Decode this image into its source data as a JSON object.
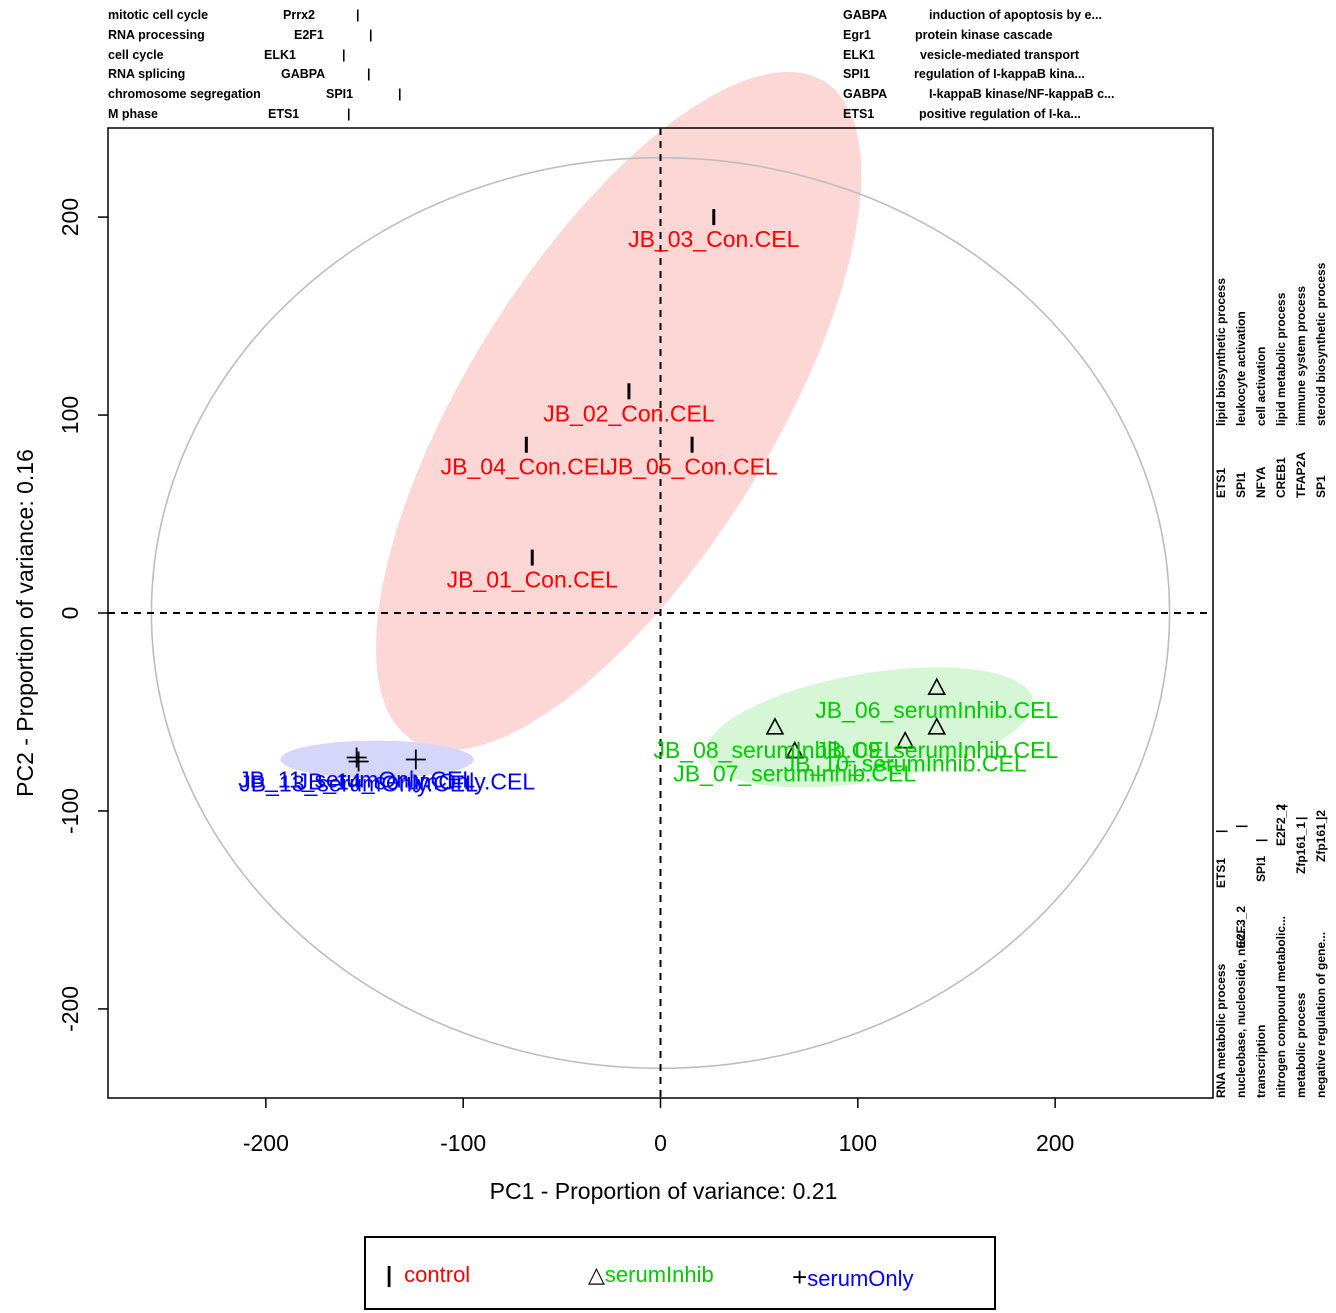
{
  "chart_data": {
    "type": "scatter",
    "title": "",
    "xlabel": "PC1  -  Proportion of variance: 0.21",
    "ylabel": "PC2  -  Proportion of variance: 0.16",
    "xlim": [
      -280,
      280
    ],
    "ylim": [
      -245,
      245
    ],
    "xticks": [
      "-200",
      "-100",
      "0",
      "100",
      "200"
    ],
    "yticks": [
      "-200",
      "-100",
      "0",
      "100",
      "200"
    ],
    "grid": false,
    "legend_position": "bottom",
    "series": [
      {
        "name": "control",
        "marker": "bar",
        "color": "#ff0000",
        "ellipse_color": "#fdd6d6",
        "points": [
          {
            "x": 27,
            "y": 200,
            "label": "JB_03_Con.CEL"
          },
          {
            "x": -16,
            "y": 112,
            "label": "JB_02_Con.CEL"
          },
          {
            "x": -68,
            "y": 85,
            "label": "JB_04_Con.CEL"
          },
          {
            "x": 16,
            "y": 85,
            "label": "JB_05_Con.CEL"
          },
          {
            "x": -65,
            "y": 28,
            "label": "JB_01_Con.CEL"
          }
        ]
      },
      {
        "name": "serumInhib",
        "marker": "triangle",
        "color": "#00cc00",
        "ellipse_color": "#d6f7d6",
        "points": [
          {
            "x": 140,
            "y": -38,
            "label": "JB_06_serumInhib.CEL"
          },
          {
            "x": 58,
            "y": -58,
            "label": "JB_08_serumInhib.CEL"
          },
          {
            "x": 140,
            "y": -58,
            "label": "JB_09_serumInhib.CEL"
          },
          {
            "x": 124,
            "y": -65,
            "label": "JB_10_serumInhib.CEL"
          },
          {
            "x": 68,
            "y": -70,
            "label": "JB_07_serumInhib.CEL"
          }
        ]
      },
      {
        "name": "serumOnly",
        "marker": "plus",
        "color": "#0000ff",
        "ellipse_color": "#d6d6fb",
        "points": [
          {
            "x": -154,
            "y": -73,
            "label": "JB_11_serumOnly.CEL"
          },
          {
            "x": -153,
            "y": -75,
            "label": "JB_13_serumOnly.CEL"
          },
          {
            "x": -124,
            "y": -74,
            "label": "JB_14_serumOnly.CEL"
          }
        ]
      }
    ],
    "annotations": {
      "top_left": [
        {
          "term": "mitotic cell cycle",
          "gene": "Prrx2"
        },
        {
          "term": "RNA processing",
          "gene": "E2F1"
        },
        {
          "term": "cell cycle",
          "gene": "ELK1"
        },
        {
          "term": "RNA splicing",
          "gene": "GABPA"
        },
        {
          "term": "chromosome segregation",
          "gene": "SPI1"
        },
        {
          "term": "M phase",
          "gene": "ETS1"
        }
      ],
      "top_right": [
        {
          "gene": "GABPA",
          "term": "induction of apoptosis by e..."
        },
        {
          "gene": "Egr1",
          "term": "protein kinase cascade"
        },
        {
          "gene": "ELK1",
          "term": "vesicle-mediated transport"
        },
        {
          "gene": "SPI1",
          "term": "regulation of I-kappaB kina..."
        },
        {
          "gene": "GABPA",
          "term": "I-kappaB kinase/NF-kappaB c..."
        },
        {
          "gene": "ETS1",
          "term": "positive regulation of I-ka..."
        }
      ],
      "right_upper": [
        {
          "gene": "ETS1",
          "term": "lipid biosynthetic process"
        },
        {
          "gene": "SPI1",
          "term": "leukocyte activation"
        },
        {
          "gene": "NFYA",
          "term": "cell activation"
        },
        {
          "gene": "CREB1",
          "term": "lipid metabolic process"
        },
        {
          "gene": "TFAP2A",
          "term": "immune system process"
        },
        {
          "gene": "SP1",
          "term": "steroid biosynthetic process"
        }
      ],
      "right_lower": [
        {
          "term": "RNA metabolic process",
          "gene": "ETS1"
        },
        {
          "term": "nucleobase, nucleoside, nuc...",
          "gene": "E2F3_2"
        },
        {
          "term": "transcription",
          "gene": "SPI1"
        },
        {
          "term": "nitrogen compound metabolic...",
          "gene": "E2F2_2"
        },
        {
          "term": "metabolic process",
          "gene": "Zfp161_1"
        },
        {
          "term": "negative regulation of gene...",
          "gene": "Zfp161_2"
        }
      ]
    },
    "legend": [
      {
        "label": "control",
        "symbol": "|",
        "color": "#ff0000"
      },
      {
        "label": "serumInhib",
        "symbol": "△",
        "color": "#00cc00"
      },
      {
        "label": "serumOnly",
        "symbol": "+",
        "color": "#0000ff"
      }
    ]
  }
}
